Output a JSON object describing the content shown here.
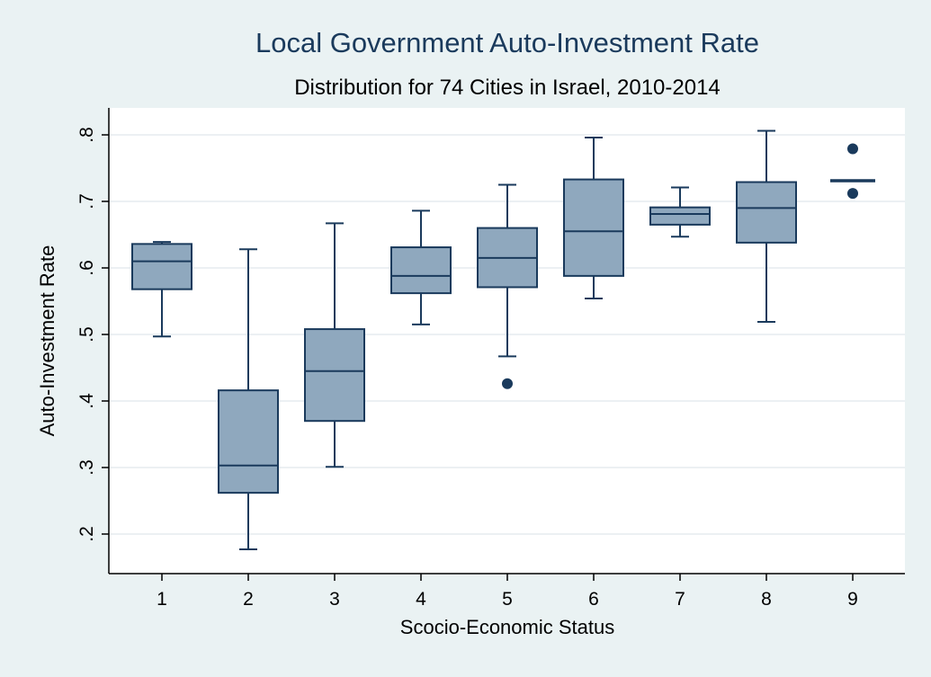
{
  "chart_data": {
    "type": "boxplot",
    "title": "Local Government Auto-Investment Rate",
    "subtitle": "Distribution for 74 Cities in Israel, 2010-2014",
    "xlabel": "Scocio-Economic Status",
    "ylabel": "Auto-Investment Rate",
    "ylim": [
      0.17,
      0.87
    ],
    "yticks": [
      0.2,
      0.3,
      0.4,
      0.5,
      0.6,
      0.7,
      0.8
    ],
    "ytick_labels": [
      ".2",
      ".3",
      ".4",
      ".5",
      ".6",
      ".7",
      ".8"
    ],
    "categories": [
      "1",
      "2",
      "3",
      "4",
      "5",
      "6",
      "7",
      "8",
      "9"
    ],
    "grid": true,
    "box_color": "#8fa8be",
    "line_color": "#1a3a5c",
    "boxes": [
      {
        "category": "1",
        "whisker_low": 0.497,
        "q1": 0.568,
        "median": 0.61,
        "q3": 0.636,
        "whisker_high": 0.639,
        "outliers": []
      },
      {
        "category": "2",
        "whisker_low": 0.177,
        "q1": 0.262,
        "median": 0.303,
        "q3": 0.416,
        "whisker_high": 0.628,
        "outliers": []
      },
      {
        "category": "3",
        "whisker_low": 0.301,
        "q1": 0.37,
        "median": 0.445,
        "q3": 0.508,
        "whisker_high": 0.667,
        "outliers": []
      },
      {
        "category": "4",
        "whisker_low": 0.515,
        "q1": 0.562,
        "median": 0.588,
        "q3": 0.631,
        "whisker_high": 0.686,
        "outliers": []
      },
      {
        "category": "5",
        "whisker_low": 0.467,
        "q1": 0.571,
        "median": 0.615,
        "q3": 0.66,
        "whisker_high": 0.725,
        "outliers": [
          0.426
        ]
      },
      {
        "category": "6",
        "whisker_low": 0.554,
        "q1": 0.588,
        "median": 0.655,
        "q3": 0.733,
        "whisker_high": 0.796,
        "outliers": []
      },
      {
        "category": "7",
        "whisker_low": 0.647,
        "q1": 0.665,
        "median": 0.681,
        "q3": 0.691,
        "whisker_high": 0.721,
        "outliers": []
      },
      {
        "category": "8",
        "whisker_low": 0.519,
        "q1": 0.638,
        "median": 0.69,
        "q3": 0.729,
        "whisker_high": 0.806,
        "outliers": []
      },
      {
        "category": "9",
        "whisker_low": 0.731,
        "q1": 0.731,
        "median": 0.731,
        "q3": 0.731,
        "whisker_high": 0.731,
        "outliers": [
          0.779,
          0.712
        ]
      }
    ]
  }
}
